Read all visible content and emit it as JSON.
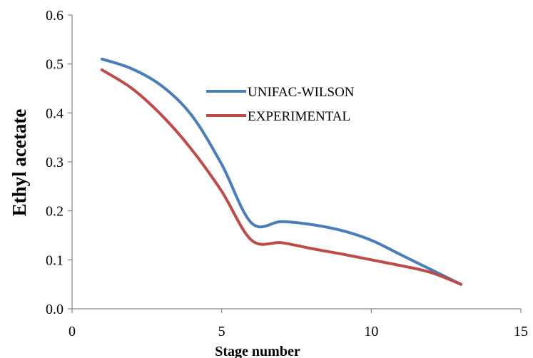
{
  "chart_data": {
    "type": "line",
    "xlabel": "Stage number",
    "ylabel": "Ethyl acetate",
    "xlim": [
      0,
      15
    ],
    "ylim": [
      0,
      0.6
    ],
    "x_ticks": [
      "0",
      "5",
      "10",
      "15"
    ],
    "y_ticks": [
      "0.0",
      "0.1",
      "0.2",
      "0.3",
      "0.4",
      "0.5",
      "0.6"
    ],
    "grid": false,
    "legend_position": "upper-middle",
    "series": [
      {
        "name": "UNIFAC-WILSON",
        "color": "#4a7ebb",
        "x": [
          1,
          2,
          3,
          4,
          5,
          6,
          7,
          8,
          9,
          10,
          11,
          12,
          13
        ],
        "y": [
          0.51,
          0.49,
          0.455,
          0.395,
          0.295,
          0.175,
          0.178,
          0.172,
          0.16,
          0.14,
          0.11,
          0.08,
          0.05
        ]
      },
      {
        "name": "EXPERIMENTAL",
        "color": "#be4b48",
        "x": [
          1,
          2,
          3,
          4,
          5,
          6,
          7,
          8,
          9,
          10,
          11,
          12,
          13
        ],
        "y": [
          0.488,
          0.45,
          0.395,
          0.325,
          0.24,
          0.14,
          0.135,
          0.123,
          0.112,
          0.1,
          0.088,
          0.074,
          0.05
        ]
      }
    ]
  }
}
